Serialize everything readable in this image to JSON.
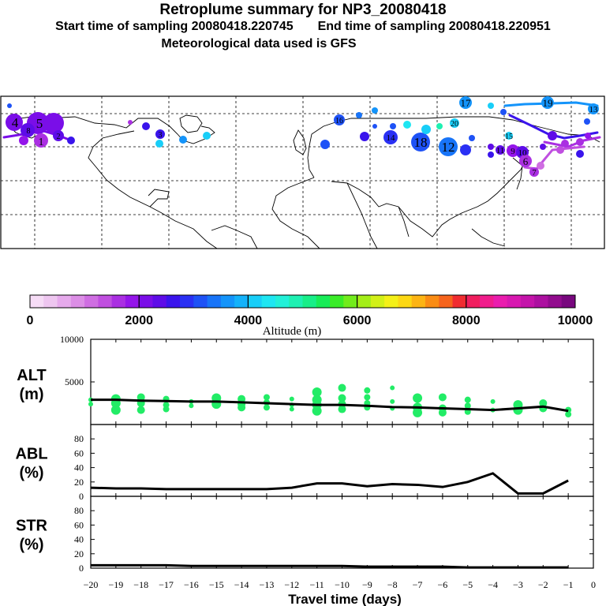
{
  "header": {
    "title": "Retroplume summary for NP3_20080418",
    "start_label": "Start time of sampling 20080418.220745",
    "end_label": "End time of sampling 20080418.220951",
    "met_label": "Meteorological data used is GFS"
  },
  "colorbar": {
    "label": "Altitude (m)",
    "ticks": [
      "0",
      "2000",
      "4000",
      "6000",
      "8000",
      "10000"
    ],
    "colors": [
      "#f6dcf6",
      "#eec6f0",
      "#e6aaec",
      "#dc8ee6",
      "#cf6ee2",
      "#c04fe0",
      "#aa2fe2",
      "#9415ea",
      "#7a0ee8",
      "#5e0ce8",
      "#3a14ec",
      "#2a30f4",
      "#1e52f6",
      "#1874f8",
      "#1494fa",
      "#14b2fa",
      "#18cef8",
      "#1ee6f2",
      "#22f0d8",
      "#1ef0b2",
      "#18ee88",
      "#18ec58",
      "#3aec28",
      "#72ec1c",
      "#a4ee18",
      "#d2f018",
      "#f4f018",
      "#fcd814",
      "#fcb414",
      "#fa8c14",
      "#f6641c",
      "#f02c30",
      "#f01e5e",
      "#f01c8c",
      "#ea1cae",
      "#d818b0",
      "#c414aa",
      "#ac10a0",
      "#920c8e",
      "#78087e"
    ]
  },
  "map_labels": [
    {
      "text": "4",
      "color": "#7a0ee8"
    },
    {
      "text": "5",
      "color": "#7a0ee8"
    },
    {
      "text": "8",
      "color": "#3a14ec"
    },
    {
      "text": "2",
      "color": "#aa2fe2"
    },
    {
      "text": "1",
      "color": "#aa2fe2"
    },
    {
      "text": "17",
      "color": "#1494fa"
    },
    {
      "text": "19",
      "color": "#1e52f6"
    },
    {
      "text": "13",
      "color": "#1e52f6"
    },
    {
      "text": "18",
      "color": "#1e52f6"
    },
    {
      "text": "14",
      "color": "#3a14ec"
    },
    {
      "text": "16",
      "color": "#2a30f4"
    },
    {
      "text": "20",
      "color": "#18cef8"
    },
    {
      "text": "12",
      "color": "#2a30f4"
    },
    {
      "text": "10",
      "color": "#aa2fe2"
    },
    {
      "text": "11",
      "color": "#5e0ce8"
    },
    {
      "text": "15",
      "color": "#18cef8"
    },
    {
      "text": "9",
      "color": "#aa2fe2"
    },
    {
      "text": "6",
      "color": "#aa2fe2"
    },
    {
      "text": "7",
      "color": "#aa2fe2"
    },
    {
      "text": "3",
      "color": "#5e0ce8"
    }
  ],
  "chart_data": [
    {
      "type": "line",
      "panel": "ALT",
      "ylabel": "ALT\n(m)",
      "ylabel_lines": [
        "ALT",
        "(m)"
      ],
      "ylim": [
        0,
        10000
      ],
      "yticks": [
        "10000",
        "5000"
      ],
      "x": [
        -20,
        -19,
        -18,
        -17,
        -16,
        -15,
        -14,
        -13,
        -12,
        -11,
        -10,
        -9,
        -8,
        -7,
        -6,
        -5,
        -4,
        -3,
        -2,
        -1
      ],
      "series": [
        {
          "name": "Median altitude",
          "color": "#000000",
          "values": [
            2900,
            2900,
            2800,
            2750,
            2700,
            2700,
            2600,
            2500,
            2400,
            2300,
            2300,
            2200,
            2050,
            2000,
            1900,
            1800,
            1700,
            1900,
            2100,
            1600
          ]
        },
        {
          "name": "Altitude clusters",
          "color": "#22ec66",
          "points": [
            [
              -20,
              2900
            ],
            [
              -20,
              2400
            ],
            [
              -19,
              3000
            ],
            [
              -19,
              2500
            ],
            [
              -19,
              1700
            ],
            [
              -18,
              3200
            ],
            [
              -18,
              2500
            ],
            [
              -18,
              1700
            ],
            [
              -17,
              3000
            ],
            [
              -17,
              2300
            ],
            [
              -17,
              1800
            ],
            [
              -16,
              2700
            ],
            [
              -16,
              2200
            ],
            [
              -15,
              3100
            ],
            [
              -15,
              2400
            ],
            [
              -14,
              3000
            ],
            [
              -14,
              2400
            ],
            [
              -14,
              2000
            ],
            [
              -13,
              3200
            ],
            [
              -13,
              2600
            ],
            [
              -13,
              2000
            ],
            [
              -12,
              3000
            ],
            [
              -12,
              2300
            ],
            [
              -12,
              1800
            ],
            [
              -11,
              3800
            ],
            [
              -11,
              2900
            ],
            [
              -11,
              2300
            ],
            [
              -11,
              1600
            ],
            [
              -10,
              4300
            ],
            [
              -10,
              3100
            ],
            [
              -10,
              2400
            ],
            [
              -10,
              1800
            ],
            [
              -9,
              4000
            ],
            [
              -9,
              3200
            ],
            [
              -9,
              2500
            ],
            [
              -9,
              2000
            ],
            [
              -8,
              4300
            ],
            [
              -8,
              2700
            ],
            [
              -8,
              1900
            ],
            [
              -7,
              3100
            ],
            [
              -7,
              2000
            ],
            [
              -7,
              1400
            ],
            [
              -6,
              3200
            ],
            [
              -6,
              1900
            ],
            [
              -6,
              1400
            ],
            [
              -5,
              2900
            ],
            [
              -5,
              2200
            ],
            [
              -5,
              1500
            ],
            [
              -4,
              2700
            ],
            [
              -4,
              1700
            ],
            [
              -3,
              2300
            ],
            [
              -3,
              1700
            ],
            [
              -2,
              2500
            ],
            [
              -2,
              1900
            ],
            [
              -1,
              1700
            ],
            [
              -1,
              1200
            ]
          ]
        }
      ]
    },
    {
      "type": "line",
      "panel": "ABL",
      "ylabel": "ABL\n(%)",
      "ylabel_lines": [
        "ABL",
        "(%)"
      ],
      "ylim": [
        0,
        100
      ],
      "yticks": [
        "80",
        "60",
        "40",
        "20",
        "0"
      ],
      "x": [
        -20,
        -19,
        -18,
        -17,
        -16,
        -15,
        -14,
        -13,
        -12,
        -11,
        -10,
        -9,
        -8,
        -7,
        -6,
        -5,
        -4,
        -3,
        -2,
        -1
      ],
      "values": [
        12,
        11,
        11,
        10,
        10,
        10,
        10,
        10,
        12,
        18,
        18,
        14,
        17,
        16,
        13,
        20,
        32,
        4,
        4,
        22
      ]
    },
    {
      "type": "line",
      "panel": "STR",
      "ylabel": "STR\n(%)",
      "ylabel_lines": [
        "STR",
        "(%)"
      ],
      "ylim": [
        0,
        100
      ],
      "yticks": [
        "80",
        "60",
        "40",
        "20",
        "0"
      ],
      "x": [
        -20,
        -19,
        -18,
        -17,
        -16,
        -15,
        -14,
        -13,
        -12,
        -11,
        -10,
        -9,
        -8,
        -7,
        -6,
        -5,
        -4,
        -3,
        -2,
        -1
      ],
      "values": [
        4,
        4,
        4,
        4,
        3,
        3,
        3,
        3,
        3,
        3,
        3,
        2,
        2,
        2,
        2,
        1,
        1,
        1,
        1,
        1
      ]
    }
  ],
  "xaxis": {
    "label": "Travel time (days)",
    "ticks": [
      "−20",
      "−19",
      "−18",
      "−17",
      "−16",
      "−15",
      "−14",
      "−13",
      "−12",
      "−11",
      "−10",
      "−9",
      "−8",
      "−7",
      "−6",
      "−5",
      "−4",
      "−3",
      "−2",
      "−1",
      "0"
    ]
  }
}
